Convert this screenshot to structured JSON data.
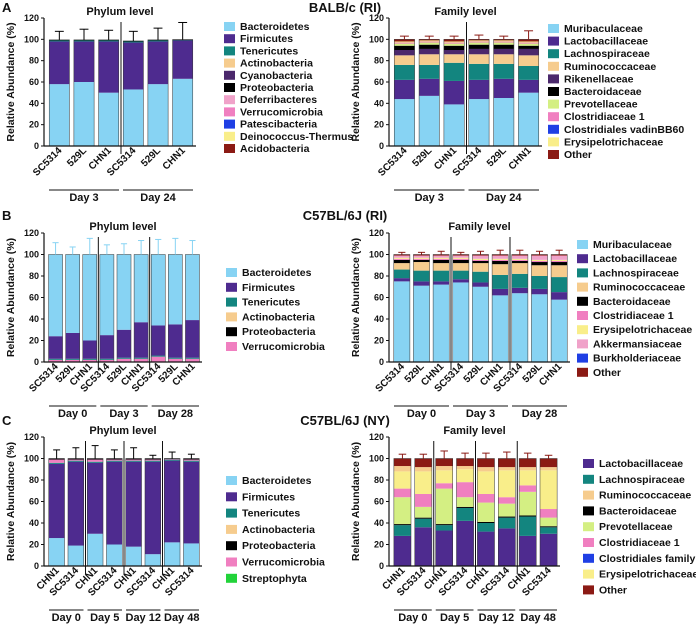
{
  "panels": [
    {
      "letter": "A",
      "title": "BALB/c (RI)"
    },
    {
      "letter": "B",
      "title": "C57BL/6J (RI)"
    },
    {
      "letter": "C",
      "title": "C57BL/6J (NY)"
    }
  ],
  "legend_colors": {
    "Bacteroidetes": "#87D3F3",
    "Firmicutes": "#4E2B8F",
    "Tenericutes": "#13857F",
    "Actinobacteria": "#F6CC8E",
    "Cyanobacteria": "#4B286C",
    "Proteobacteria": "#000000",
    "Deferribacteres": "#F0A2C9",
    "Verrucomicrobia": "#F07FC0",
    "Patescibacteria": "#1F3FE4",
    "Deinococcus-Thermus": "#F9EE8A",
    "Acidobacteria": "#8B1A14",
    "Streptophyta": "#22D33A",
    "Muribaculaceae": "#87D3F3",
    "Lactobacillaceae": "#4E2B8F",
    "Lachnospiraceae": "#13857F",
    "Ruminococcaceae": "#F6CC8E",
    "Rikenellaceae": "#4B286C",
    "Bacteroidaceae": "#000000",
    "Prevotellaceae": "#D4EF83",
    "Clostridiaceae 1": "#F07FC0",
    "Clostridiales vadinBB60": "#1F3FE4",
    "Erysipelotrichaceae": "#F9EE8A",
    "Other": "#8B1A14",
    "Akkermansiaceae": "#F0A2C9",
    "Burkholderiaceae": "#1F3FE4",
    "Clostridiales family XII": "#1F3FE4"
  },
  "chart_data": [
    {
      "type": "bar",
      "stacked": true,
      "panel": "A",
      "title": "Phylum level",
      "ylabel": "Relative Abundance (%)",
      "ylim": [
        0,
        120
      ],
      "yticks": [
        0,
        20,
        40,
        60,
        80,
        100,
        120
      ],
      "categories": [
        "SC5314",
        "529L",
        "CHN1",
        "SC5314",
        "529L",
        "CHN1"
      ],
      "groups": [
        {
          "label": "Day 3",
          "span": [
            0,
            2
          ]
        },
        {
          "label": "Day 24",
          "span": [
            3,
            5
          ]
        }
      ],
      "legend": [
        "Bacteroidetes",
        "Firmicutes",
        "Tenericutes",
        "Actinobacteria",
        "Cyanobacteria",
        "Proteobacteria",
        "Deferribacteres",
        "Verrucomicrobia",
        "Patescibacteria",
        "Deinococcus-Thermus",
        "Acidobacteria"
      ],
      "series": [
        {
          "name": "Bacteroidetes",
          "values": [
            58,
            60,
            50,
            53,
            58,
            63
          ]
        },
        {
          "name": "Firmicutes",
          "values": [
            40,
            38,
            48,
            44,
            40,
            36
          ]
        },
        {
          "name": "Tenericutes",
          "values": [
            1,
            1,
            1,
            1,
            1,
            0.5
          ]
        },
        {
          "name": "Proteobacteria",
          "values": [
            0.5,
            0.5,
            0.5,
            0.5,
            0.5,
            0.3
          ]
        }
      ],
      "errors": [
        8,
        10,
        9,
        9,
        11,
        16
      ]
    },
    {
      "type": "bar",
      "stacked": true,
      "panel": "A",
      "title": "Family level",
      "ylabel": "Relative Abundance (%)",
      "ylim": [
        0,
        120
      ],
      "yticks": [
        0,
        20,
        40,
        60,
        80,
        100,
        120
      ],
      "categories": [
        "SC5314",
        "529L",
        "CHN1",
        "SC5314",
        "529L",
        "CHN1"
      ],
      "groups": [
        {
          "label": "Day 3",
          "span": [
            0,
            2
          ]
        },
        {
          "label": "Day 24",
          "span": [
            3,
            5
          ]
        }
      ],
      "legend": [
        "Muribaculaceae",
        "Lactobacillaceae",
        "Lachnospiraceae",
        "Ruminococcaceae",
        "Rikenellaceae",
        "Bacteroidaceae",
        "Prevotellaceae",
        "Clostridiaceae 1",
        "Clostridiales vadinBB60",
        "Erysipelotrichaceae",
        "Other"
      ],
      "series": [
        {
          "name": "Muribaculaceae",
          "values": [
            44,
            47,
            39,
            44,
            45,
            50
          ]
        },
        {
          "name": "Lactobacillaceae",
          "values": [
            18,
            16,
            22,
            18,
            18,
            12
          ]
        },
        {
          "name": "Lachnospiraceae",
          "values": [
            14,
            13,
            17,
            15,
            14,
            13
          ]
        },
        {
          "name": "Ruminococcaceae",
          "values": [
            9,
            10,
            8,
            9,
            9,
            10
          ]
        },
        {
          "name": "Rikenellaceae",
          "values": [
            5,
            5,
            4,
            5,
            5,
            6
          ]
        },
        {
          "name": "Bacteroidaceae",
          "values": [
            4,
            4,
            4,
            4,
            4,
            3
          ]
        },
        {
          "name": "Prevotellaceae",
          "values": [
            2,
            2,
            2,
            2,
            2,
            2
          ]
        },
        {
          "name": "Clostridiaceae 1",
          "values": [
            1,
            1,
            1,
            1,
            1,
            1
          ]
        },
        {
          "name": "Erysipelotrichaceae",
          "values": [
            1,
            1,
            1,
            1,
            1,
            1
          ]
        },
        {
          "name": "Other",
          "values": [
            2,
            1,
            2,
            1,
            1,
            2
          ]
        }
      ],
      "errors": [
        3,
        3,
        3,
        4,
        3,
        8
      ]
    },
    {
      "type": "bar",
      "stacked": true,
      "panel": "B",
      "title": "Phylum level",
      "ylabel": "Relative Abundance (%)",
      "ylim": [
        0,
        120
      ],
      "yticks": [
        0,
        20,
        40,
        60,
        80,
        100,
        120
      ],
      "categories": [
        "SC5314",
        "529L",
        "CHN1",
        "SC5314",
        "529L",
        "CHN1",
        "SC5314",
        "529L",
        "CHN1"
      ],
      "groups": [
        {
          "label": "Day 0",
          "span": [
            0,
            2
          ]
        },
        {
          "label": "Day 3",
          "span": [
            3,
            5
          ]
        },
        {
          "label": "Day 28",
          "span": [
            6,
            8
          ]
        }
      ],
      "legend": [
        "Bacteroidetes",
        "Firmicutes",
        "Tenericutes",
        "Actinobacteria",
        "Proteobacteria",
        "Verrucomicrobia"
      ],
      "series": [
        {
          "name": "Verrucomicrobia",
          "values": [
            2,
            2,
            2,
            2,
            3,
            3,
            5,
            3,
            3
          ]
        },
        {
          "name": "Tenericutes",
          "values": [
            1,
            1,
            1,
            1,
            1,
            1,
            1,
            1,
            1
          ]
        },
        {
          "name": "Firmicutes",
          "values": [
            21,
            24,
            17,
            22,
            26,
            33,
            28,
            31,
            35
          ]
        },
        {
          "name": "Bacteroidetes",
          "values": [
            76,
            73,
            80,
            75,
            70,
            63,
            66,
            65,
            61
          ]
        }
      ],
      "errors": [
        11,
        7,
        15,
        9,
        10,
        13,
        14,
        15,
        13
      ]
    },
    {
      "type": "bar",
      "stacked": true,
      "panel": "B",
      "title": "Family level",
      "ylabel": "Relative Abundance (%)",
      "ylim": [
        0,
        120
      ],
      "yticks": [
        0,
        20,
        40,
        60,
        80,
        100,
        120
      ],
      "categories": [
        "SC5314",
        "529L",
        "CHN1",
        "SC5314",
        "529L",
        "CHN1",
        "SC5314",
        "529L",
        "CHN1"
      ],
      "groups": [
        {
          "label": "Day 0",
          "span": [
            0,
            2
          ]
        },
        {
          "label": "Day 3",
          "span": [
            3,
            5
          ]
        },
        {
          "label": "Day 28",
          "span": [
            6,
            8
          ]
        }
      ],
      "legend": [
        "Muribaculaceae",
        "Lactobacillaceae",
        "Lachnospiraceae",
        "Ruminococcaceae",
        "Bacteroidaceae",
        "Clostridiaceae 1",
        "Erysipelotrichaceae",
        "Akkermansiaceae",
        "Burkholderiaceae",
        "Other"
      ],
      "series": [
        {
          "name": "Muribaculaceae",
          "values": [
            75,
            71,
            72,
            74,
            70,
            62,
            64,
            63,
            58
          ]
        },
        {
          "name": "Lactobacillaceae",
          "values": [
            3,
            4,
            3,
            3,
            4,
            6,
            5,
            5,
            7
          ]
        },
        {
          "name": "Lachnospiraceae",
          "values": [
            8,
            10,
            10,
            8,
            10,
            13,
            13,
            12,
            14
          ]
        },
        {
          "name": "Ruminococcaceae",
          "values": [
            6,
            8,
            7,
            7,
            8,
            10,
            10,
            10,
            11
          ]
        },
        {
          "name": "Bacteroidaceae",
          "values": [
            3,
            2,
            3,
            3,
            2,
            3,
            2,
            3,
            3
          ]
        },
        {
          "name": "Clostridiaceae 1",
          "values": [
            1,
            1,
            1,
            1,
            1,
            1,
            1,
            1,
            1
          ]
        },
        {
          "name": "Erysipelotrichaceae",
          "values": [
            1,
            1,
            1,
            1,
            1,
            1,
            1,
            1,
            1
          ]
        },
        {
          "name": "Akkermansiaceae",
          "values": [
            2,
            2,
            2,
            2,
            3,
            3,
            3,
            4,
            4
          ]
        },
        {
          "name": "Other",
          "values": [
            1,
            1,
            1,
            1,
            1,
            1,
            1,
            1,
            1
          ]
        }
      ],
      "errors": [
        2,
        2,
        3,
        2,
        3,
        4,
        4,
        3,
        4
      ]
    },
    {
      "type": "bar",
      "stacked": true,
      "panel": "C",
      "title": "Phylum level",
      "ylabel": "Relative Abundance (%)",
      "ylim": [
        0,
        120
      ],
      "yticks": [
        0,
        20,
        40,
        60,
        80,
        100,
        120
      ],
      "categories": [
        "CHN1",
        "SC5314",
        "CHN1",
        "SC5314",
        "CHN1",
        "SC5314",
        "CHN1",
        "SC5314"
      ],
      "groups": [
        {
          "label": "Day 0",
          "span": [
            0,
            1
          ]
        },
        {
          "label": "Day 5",
          "span": [
            2,
            3
          ]
        },
        {
          "label": "Day 12",
          "span": [
            4,
            5
          ]
        },
        {
          "label": "Day 48",
          "span": [
            6,
            7
          ]
        }
      ],
      "legend": [
        "Bacteroidetes",
        "Firmicutes",
        "Tenericutes",
        "Actinobacteria",
        "Proteobacteria",
        "Verrucomicrobia",
        "Streptophyta"
      ],
      "series": [
        {
          "name": "Bacteroidetes",
          "values": [
            26,
            19,
            30,
            20,
            18,
            11,
            22,
            21
          ]
        },
        {
          "name": "Firmicutes",
          "values": [
            69,
            78,
            66,
            77,
            79,
            86,
            76,
            76
          ]
        },
        {
          "name": "Tenericutes",
          "values": [
            1,
            1,
            1,
            1,
            1,
            1,
            1,
            1
          ]
        },
        {
          "name": "Verrucomicrobia",
          "values": [
            3,
            1,
            2,
            1,
            1,
            1,
            0.5,
            1
          ]
        },
        {
          "name": "Proteobacteria",
          "values": [
            1,
            1,
            1,
            1,
            1,
            1,
            0.5,
            1
          ]
        }
      ],
      "errors": [
        8,
        10,
        12,
        8,
        10,
        3,
        6,
        4
      ]
    },
    {
      "type": "bar",
      "stacked": true,
      "panel": "C",
      "title": "Family level",
      "ylabel": "Relative Abundance (%)",
      "ylim": [
        0,
        120
      ],
      "yticks": [
        0,
        20,
        40,
        60,
        80,
        100,
        120
      ],
      "categories": [
        "CHN1",
        "SC5314",
        "CHN1",
        "SC5314",
        "CHN1",
        "SC5314",
        "CHN1",
        "SC5314"
      ],
      "groups": [
        {
          "label": "Day 0",
          "span": [
            0,
            1
          ]
        },
        {
          "label": "Day 5",
          "span": [
            2,
            3
          ]
        },
        {
          "label": "Day 12",
          "span": [
            4,
            5
          ]
        },
        {
          "label": "Day 48",
          "span": [
            6,
            7
          ]
        }
      ],
      "legend": [
        "Lactobacillaceae",
        "Lachnospiraceae",
        "Ruminococcaceae",
        "Bacteroidaceae",
        "Prevotellaceae",
        "Clostridiaceae 1",
        "Clostridiales family XII",
        "Erysipelotrichaceae",
        "Other"
      ],
      "series": [
        {
          "name": "Lactobacillaceae",
          "values": [
            28,
            36,
            33,
            42,
            32,
            35,
            28,
            30
          ]
        },
        {
          "name": "Lachnospiraceae",
          "values": [
            10,
            8,
            5,
            12,
            8,
            10,
            18,
            6
          ]
        },
        {
          "name": "Bacteroidaceae",
          "values": [
            1,
            1,
            1,
            1,
            1,
            1,
            1,
            1
          ]
        },
        {
          "name": "Prevotellaceae",
          "values": [
            25,
            10,
            33,
            9,
            18,
            12,
            22,
            8
          ]
        },
        {
          "name": "Clostridiaceae 1",
          "values": [
            8,
            12,
            5,
            14,
            8,
            6,
            6,
            8
          ]
        },
        {
          "name": "Erysipelotrichaceae",
          "values": [
            16,
            21,
            12,
            12,
            21,
            25,
            14,
            36
          ]
        },
        {
          "name": "Ruminococcaceae",
          "values": [
            5,
            4,
            4,
            3,
            4,
            3,
            3,
            3
          ]
        },
        {
          "name": "Other",
          "values": [
            7,
            8,
            7,
            7,
            8,
            8,
            8,
            8
          ]
        }
      ],
      "errors": [
        4,
        4,
        7,
        5,
        5,
        6,
        5,
        3
      ]
    }
  ]
}
